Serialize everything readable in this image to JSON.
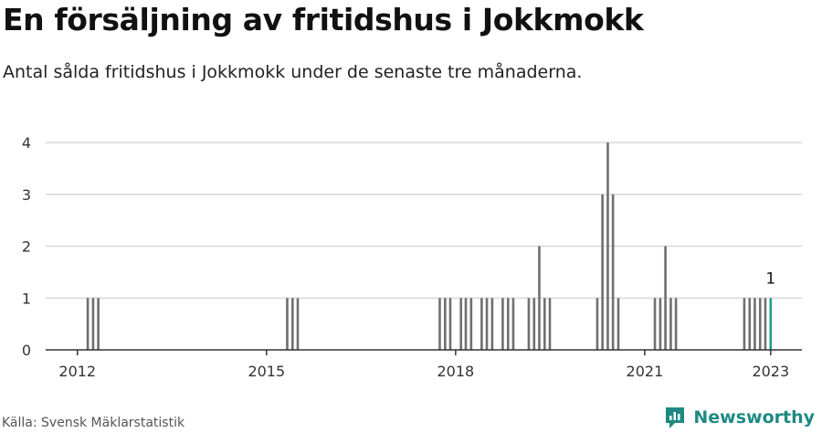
{
  "header": {
    "title": "En försäljning av fritidshus i Jokkmokk",
    "subtitle": "Antal sålda fritidshus i Jokkmokk under de senaste tre månaderna."
  },
  "footer": {
    "source": "Källa: Svensk Mäklarstatistik",
    "brand": "Newsworthy",
    "brand_icon": "newsworthy-logo-icon"
  },
  "colors": {
    "bar": "#6f6f6f",
    "highlight": "#1b9e8e",
    "grid": "#d9d9d9",
    "axis": "#333333",
    "brand": "#1f8a82"
  },
  "chart_data": {
    "type": "bar",
    "xlabel": "",
    "ylabel": "",
    "ylim": [
      0,
      4
    ],
    "yticks": [
      0,
      1,
      2,
      3,
      4
    ],
    "xticks": [
      "2012",
      "2015",
      "2018",
      "2021",
      "2023"
    ],
    "xlim": [
      "2011-07-01",
      "2023-07-01"
    ],
    "grid": true,
    "highlight_label": "1",
    "series": [
      {
        "values": [
          {
            "date": "2012-03-01",
            "value": 1
          },
          {
            "date": "2012-04-01",
            "value": 1
          },
          {
            "date": "2012-05-01",
            "value": 1
          },
          {
            "date": "2015-05-01",
            "value": 1
          },
          {
            "date": "2015-06-01",
            "value": 1
          },
          {
            "date": "2015-07-01",
            "value": 1
          },
          {
            "date": "2017-10-01",
            "value": 1
          },
          {
            "date": "2017-11-01",
            "value": 1
          },
          {
            "date": "2017-12-01",
            "value": 1
          },
          {
            "date": "2018-02-01",
            "value": 1
          },
          {
            "date": "2018-03-01",
            "value": 1
          },
          {
            "date": "2018-04-01",
            "value": 1
          },
          {
            "date": "2018-06-01",
            "value": 1
          },
          {
            "date": "2018-07-01",
            "value": 1
          },
          {
            "date": "2018-08-01",
            "value": 1
          },
          {
            "date": "2018-10-01",
            "value": 1
          },
          {
            "date": "2018-11-01",
            "value": 1
          },
          {
            "date": "2018-12-01",
            "value": 1
          },
          {
            "date": "2019-03-01",
            "value": 1
          },
          {
            "date": "2019-04-01",
            "value": 1
          },
          {
            "date": "2019-05-01",
            "value": 2
          },
          {
            "date": "2019-06-01",
            "value": 1
          },
          {
            "date": "2019-07-01",
            "value": 1
          },
          {
            "date": "2020-04-01",
            "value": 1
          },
          {
            "date": "2020-05-01",
            "value": 3
          },
          {
            "date": "2020-06-01",
            "value": 4
          },
          {
            "date": "2020-07-01",
            "value": 3
          },
          {
            "date": "2020-08-01",
            "value": 1
          },
          {
            "date": "2021-03-01",
            "value": 1
          },
          {
            "date": "2021-04-01",
            "value": 1
          },
          {
            "date": "2021-05-01",
            "value": 2
          },
          {
            "date": "2021-06-01",
            "value": 1
          },
          {
            "date": "2021-07-01",
            "value": 1
          },
          {
            "date": "2022-08-01",
            "value": 1
          },
          {
            "date": "2022-09-01",
            "value": 1
          },
          {
            "date": "2022-10-01",
            "value": 1
          },
          {
            "date": "2022-11-01",
            "value": 1
          },
          {
            "date": "2022-12-01",
            "value": 1
          },
          {
            "date": "2023-01-01",
            "value": 1,
            "highlight": true
          }
        ]
      }
    ]
  }
}
